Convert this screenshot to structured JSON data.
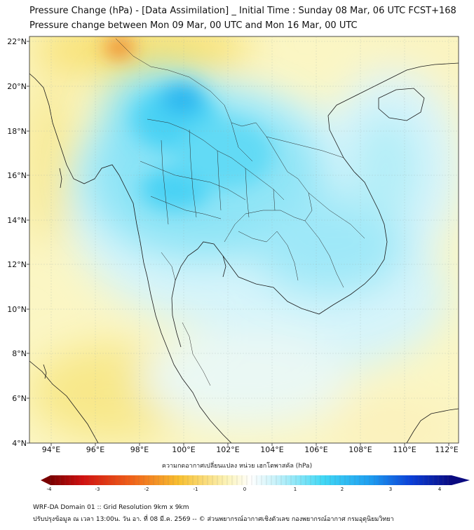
{
  "header": {
    "title_line1": "Pressure Change (hPa) - [Data Assimilation] _ Initial Time : Sunday 08 Mar, 06 UTC FCST+168",
    "title_line2": "Pressure change between Mon 09 Mar, 00 UTC and Mon 16 Mar, 00 UTC"
  },
  "map": {
    "lat_labels": [
      "22°N",
      "20°N",
      "18°N",
      "16°N",
      "14°N",
      "12°N",
      "10°N",
      "8°N",
      "6°N",
      "4°N"
    ],
    "lon_labels": [
      "94°E",
      "96°E",
      "98°E",
      "100°E",
      "102°E",
      "104°E",
      "106°E",
      "108°E",
      "110°E",
      "112°E"
    ],
    "colors": {
      "negative_strong": "#e8541a",
      "negative_mid": "#f5c52a",
      "negative_light": "#f8f0a6",
      "neutral": "#ffffff",
      "positive_light": "#c8f0f8",
      "positive_mid": "#3fd6f5",
      "positive_strong": "#2a9ef0"
    }
  },
  "colorbar": {
    "title": "ความกดอากาศเปลี่ยนแปลง หน่วย เฮกโตพาสคัล (hPa)",
    "ticks": [
      "-4",
      "-3",
      "-2",
      "-1",
      "0",
      "1",
      "2",
      "3",
      "4"
    ]
  },
  "footer": {
    "line1": "WRF-DA Domain 01 :: Grid Resolution 9km x 9km",
    "line2": "ปรับปรุงข้อมูล ณ เวลา 13:00น. วัน อา. ที่ 08 มี.ค. 2569 -- © ส่วนพยากรณ์อากาศเชิงตัวเลข กองพยากรณ์อากาศ กรมอุตุนิยมวิทยา"
  }
}
